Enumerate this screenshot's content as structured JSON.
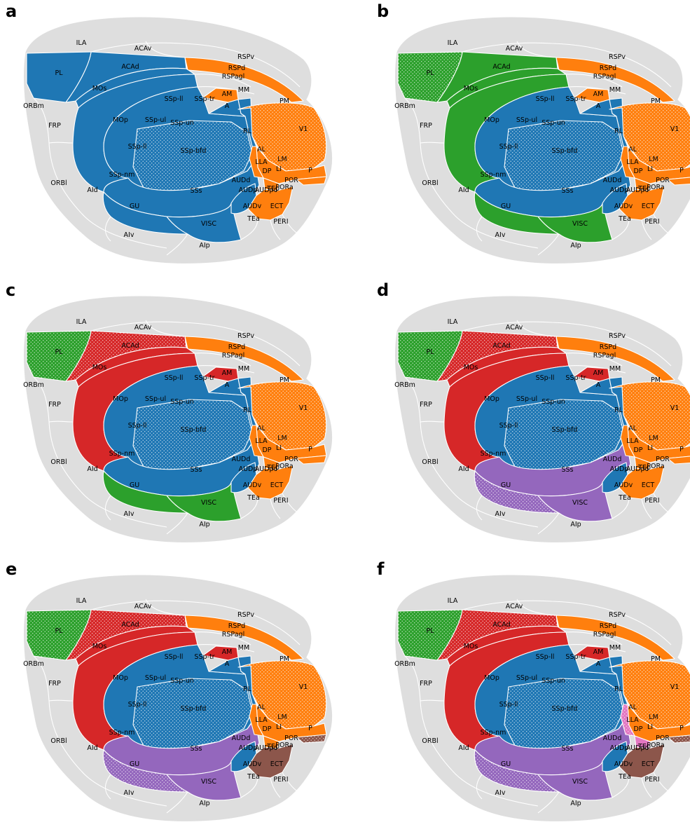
{
  "colors": {
    "blue": "#1f77b4",
    "orange": "#ff7f0e",
    "green": "#2ca02c",
    "red": "#d62728",
    "purple": "#9467bd",
    "brown": "#8c564b",
    "pink": "#e377c2",
    "gray": "#dedede"
  },
  "region_labels": [
    "ILA",
    "ACAv",
    "RSPv",
    "PL",
    "ACAd",
    "RSPd",
    "RSPagl",
    "MOs",
    "MM",
    "AM",
    "PM",
    "ORBm",
    "SSp-ll",
    "SSp-tr",
    "A",
    "MOp",
    "SSp-ul",
    "SSp-un",
    "RL",
    "V1",
    "FRP",
    "SSp-ll",
    "SSp-bfd",
    "AL",
    "LM",
    "LLA",
    "LI",
    "P",
    "DP",
    "SSp-nm",
    "POR",
    "ORBl",
    "AUDd",
    "AUDp",
    "AUDpo",
    "TEp",
    "PORa",
    "AId",
    "SSs",
    "GU",
    "AUDv",
    "ECT",
    "TEa",
    "PERI",
    "VISC",
    "AIv",
    "AIp"
  ],
  "panels": [
    {
      "letter": "a",
      "PL": {
        "c": "blue",
        "h": false
      },
      "ACAd": {
        "c": "blue",
        "h": false
      },
      "MOs": {
        "c": "blue",
        "h": false
      },
      "MOp": {
        "c": "blue",
        "h": false
      },
      "SSp": {
        "c": "blue",
        "h": false
      },
      "SSpbfd": {
        "c": "blue",
        "h": true
      },
      "SSs": {
        "c": "blue",
        "h": false
      },
      "GU": {
        "c": "blue",
        "h": false
      },
      "VISC": {
        "c": "blue",
        "h": false
      },
      "AUD": {
        "c": "blue",
        "h": false
      },
      "AM": {
        "c": "orange",
        "h": false
      },
      "A": {
        "c": "blue",
        "h": false
      },
      "RL": {
        "c": "blue",
        "h": false
      },
      "V1": {
        "c": "orange",
        "h": true
      },
      "RSP": {
        "c": "orange",
        "h": false
      },
      "LAT": {
        "c": "orange",
        "h": false
      },
      "ALLLA": {
        "c": "orange",
        "h": false
      },
      "DP": {
        "c": "orange",
        "h": false
      },
      "P": {
        "c": "orange",
        "h": false
      },
      "TEMP": {
        "c": "orange",
        "h": false
      }
    },
    {
      "letter": "b",
      "PL": {
        "c": "green",
        "h": true
      },
      "ACAd": {
        "c": "green",
        "h": false
      },
      "MOs": {
        "c": "green",
        "h": false
      },
      "MOp": {
        "c": "green",
        "h": false
      },
      "SSp": {
        "c": "blue",
        "h": false
      },
      "SSpbfd": {
        "c": "blue",
        "h": true
      },
      "SSs": {
        "c": "blue",
        "h": false
      },
      "GU": {
        "c": "green",
        "h": false
      },
      "VISC": {
        "c": "green",
        "h": false
      },
      "AUD": {
        "c": "blue",
        "h": false
      },
      "AM": {
        "c": "orange",
        "h": false
      },
      "A": {
        "c": "blue",
        "h": false
      },
      "RL": {
        "c": "blue",
        "h": false
      },
      "V1": {
        "c": "orange",
        "h": true
      },
      "RSP": {
        "c": "orange",
        "h": false
      },
      "LAT": {
        "c": "orange",
        "h": false
      },
      "ALLLA": {
        "c": "orange",
        "h": false
      },
      "DP": {
        "c": "orange",
        "h": false
      },
      "P": {
        "c": "orange",
        "h": false
      },
      "TEMP": {
        "c": "orange",
        "h": false
      }
    },
    {
      "letter": "c",
      "PL": {
        "c": "green",
        "h": true
      },
      "ACAd": {
        "c": "red",
        "h": true
      },
      "MOs": {
        "c": "red",
        "h": false
      },
      "MOp": {
        "c": "red",
        "h": false
      },
      "SSp": {
        "c": "blue",
        "h": false
      },
      "SSpbfd": {
        "c": "blue",
        "h": true
      },
      "SSs": {
        "c": "blue",
        "h": false
      },
      "GU": {
        "c": "green",
        "h": false
      },
      "VISC": {
        "c": "green",
        "h": false
      },
      "AUD": {
        "c": "blue",
        "h": false
      },
      "AM": {
        "c": "red",
        "h": false
      },
      "A": {
        "c": "blue",
        "h": false
      },
      "RL": {
        "c": "blue",
        "h": false
      },
      "V1": {
        "c": "orange",
        "h": true
      },
      "RSP": {
        "c": "orange",
        "h": false
      },
      "LAT": {
        "c": "orange",
        "h": false
      },
      "ALLLA": {
        "c": "orange",
        "h": false
      },
      "DP": {
        "c": "orange",
        "h": false
      },
      "P": {
        "c": "orange",
        "h": false
      },
      "TEMP": {
        "c": "orange",
        "h": false
      }
    },
    {
      "letter": "d",
      "PL": {
        "c": "green",
        "h": true
      },
      "ACAd": {
        "c": "red",
        "h": true
      },
      "MOs": {
        "c": "red",
        "h": false
      },
      "MOp": {
        "c": "red",
        "h": false
      },
      "SSp": {
        "c": "blue",
        "h": false
      },
      "SSpbfd": {
        "c": "blue",
        "h": true
      },
      "SSs": {
        "c": "purple",
        "h": false
      },
      "GU": {
        "c": "purple",
        "h": true
      },
      "VISC": {
        "c": "purple",
        "h": false
      },
      "AUD": {
        "c": "blue",
        "h": false
      },
      "AM": {
        "c": "red",
        "h": false
      },
      "A": {
        "c": "blue",
        "h": false
      },
      "RL": {
        "c": "blue",
        "h": false
      },
      "V1": {
        "c": "orange",
        "h": true
      },
      "RSP": {
        "c": "orange",
        "h": false
      },
      "LAT": {
        "c": "orange",
        "h": false
      },
      "ALLLA": {
        "c": "orange",
        "h": false
      },
      "DP": {
        "c": "orange",
        "h": false
      },
      "P": {
        "c": "orange",
        "h": false
      },
      "TEMP": {
        "c": "orange",
        "h": false
      }
    },
    {
      "letter": "e",
      "PL": {
        "c": "green",
        "h": true
      },
      "ACAd": {
        "c": "red",
        "h": true
      },
      "MOs": {
        "c": "red",
        "h": false
      },
      "MOp": {
        "c": "red",
        "h": false
      },
      "SSp": {
        "c": "blue",
        "h": false
      },
      "SSpbfd": {
        "c": "blue",
        "h": true
      },
      "SSs": {
        "c": "purple",
        "h": false
      },
      "GU": {
        "c": "purple",
        "h": true
      },
      "VISC": {
        "c": "purple",
        "h": false
      },
      "AUD": {
        "c": "blue",
        "h": false
      },
      "AM": {
        "c": "red",
        "h": false
      },
      "A": {
        "c": "blue",
        "h": false
      },
      "RL": {
        "c": "blue",
        "h": false
      },
      "V1": {
        "c": "orange",
        "h": true
      },
      "RSP": {
        "c": "orange",
        "h": false
      },
      "LAT": {
        "c": "orange",
        "h": false
      },
      "ALLLA": {
        "c": "orange",
        "h": false
      },
      "DP": {
        "c": "orange",
        "h": false
      },
      "P": {
        "c": "brown",
        "h": true
      },
      "TEMP": {
        "c": "brown",
        "h": false
      }
    },
    {
      "letter": "f",
      "PL": {
        "c": "green",
        "h": true
      },
      "ACAd": {
        "c": "red",
        "h": true
      },
      "MOs": {
        "c": "red",
        "h": false
      },
      "MOp": {
        "c": "red",
        "h": false
      },
      "SSp": {
        "c": "blue",
        "h": false
      },
      "SSpbfd": {
        "c": "blue",
        "h": true
      },
      "SSs": {
        "c": "purple",
        "h": false
      },
      "GU": {
        "c": "purple",
        "h": true
      },
      "VISC": {
        "c": "purple",
        "h": false
      },
      "AUD": {
        "c": "blue",
        "h": false
      },
      "AM": {
        "c": "red",
        "h": false
      },
      "A": {
        "c": "blue",
        "h": false
      },
      "RL": {
        "c": "blue",
        "h": false
      },
      "V1": {
        "c": "orange",
        "h": true
      },
      "RSP": {
        "c": "orange",
        "h": false
      },
      "LAT": {
        "c": "orange",
        "h": false
      },
      "ALLLA": {
        "c": "pink",
        "h": true
      },
      "DP": {
        "c": "pink",
        "h": false
      },
      "P": {
        "c": "brown",
        "h": true
      },
      "TEMP": {
        "c": "brown",
        "h": false
      }
    }
  ]
}
